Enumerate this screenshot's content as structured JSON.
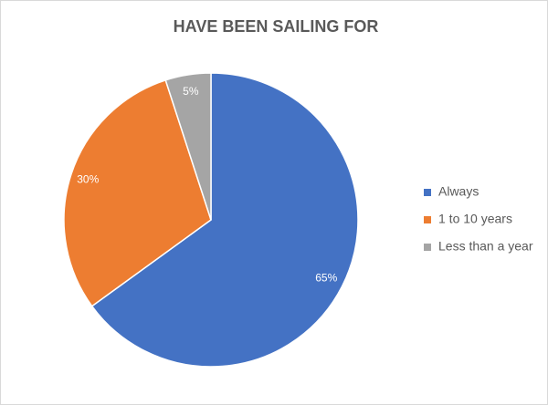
{
  "chart_data": {
    "type": "pie",
    "title": "HAVE BEEN SAILING FOR",
    "categories": [
      "Always",
      "1 to 10 years",
      "Less than a year"
    ],
    "values": [
      65,
      30,
      5
    ],
    "value_labels": [
      "65%",
      "30%",
      "5%"
    ],
    "colors": [
      "#4472c4",
      "#ed7d31",
      "#a5a5a5"
    ],
    "legend": "right"
  }
}
